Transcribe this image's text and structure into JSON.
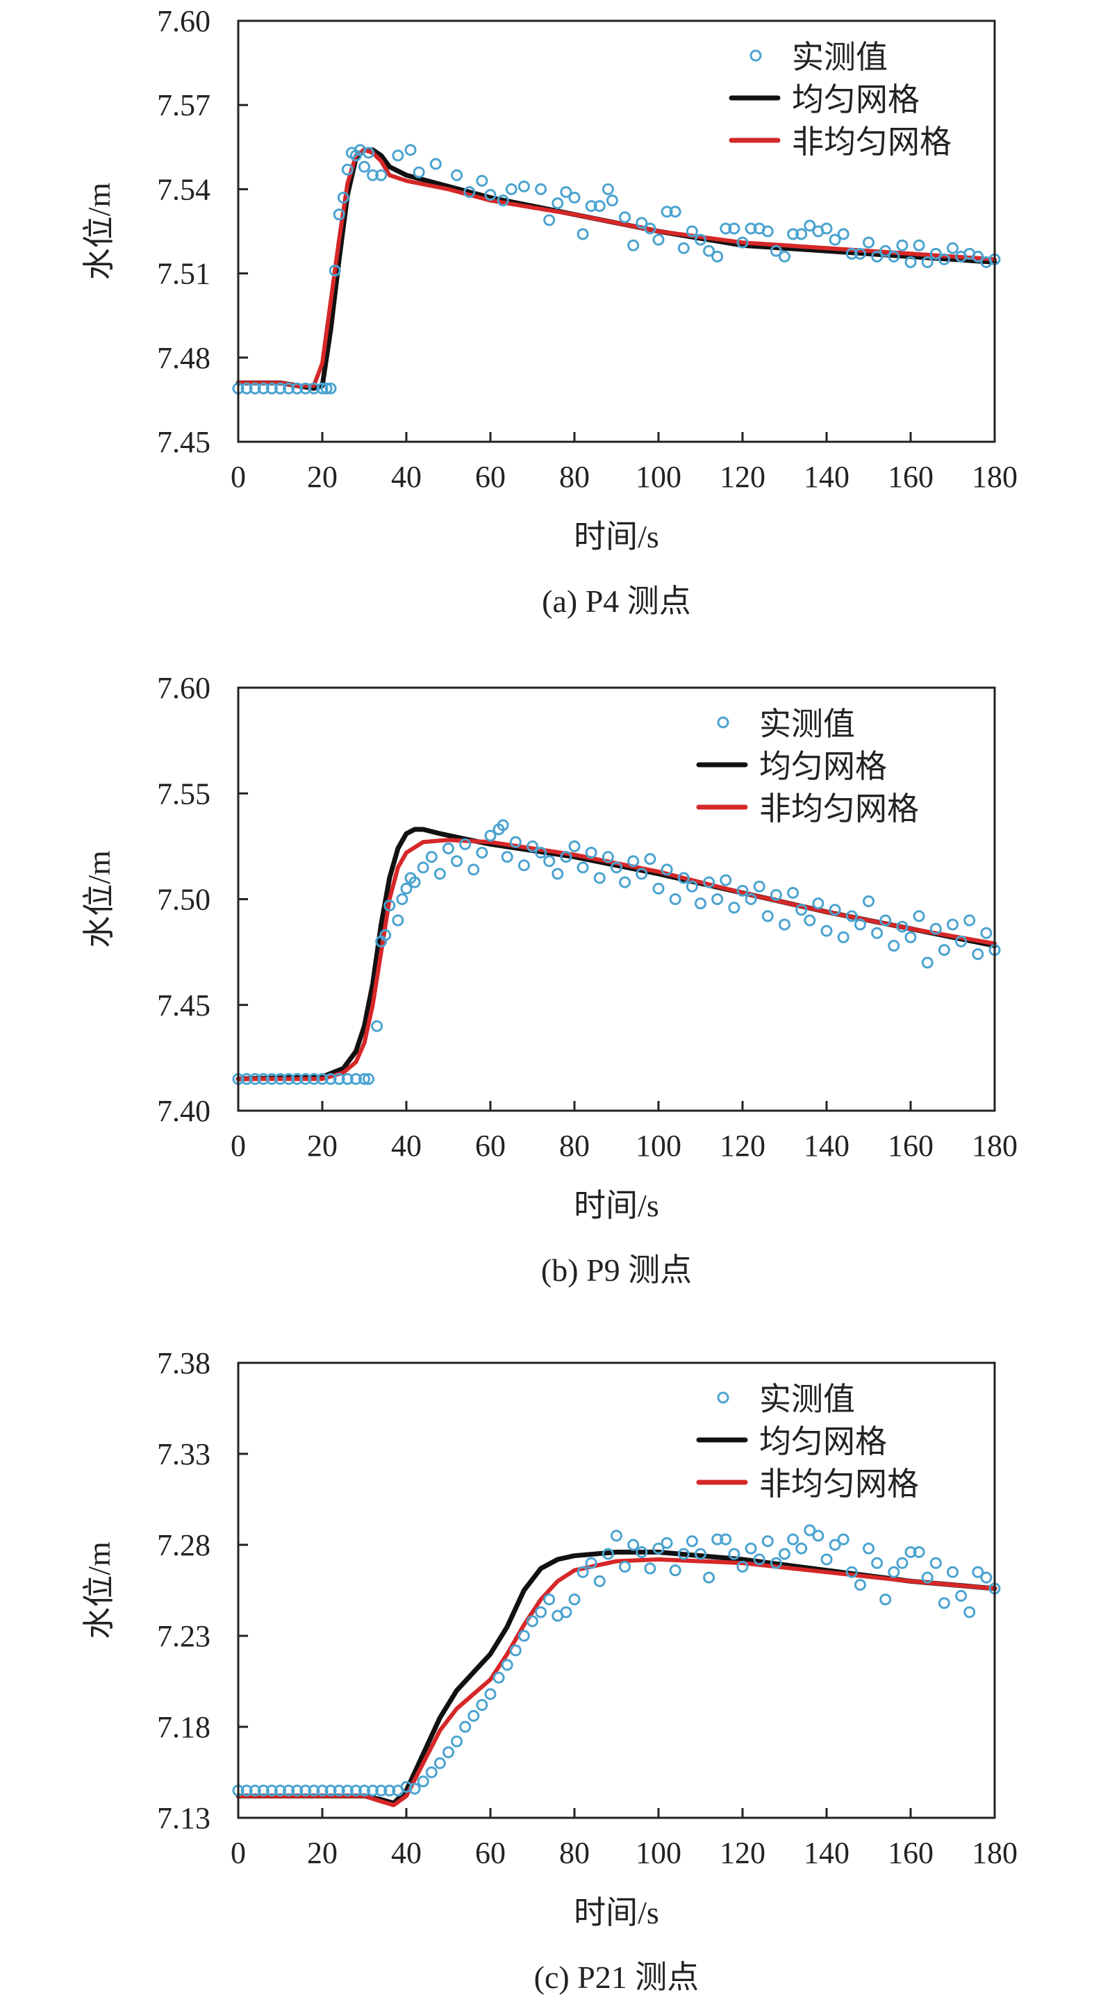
{
  "colors": {
    "measured": "#4aa3d0",
    "uniform": "#111111",
    "nonuniform": "#d62728",
    "axis": "#222222"
  },
  "chart_data": [
    {
      "type": "line",
      "caption": "(a) P4 测点",
      "xlabel": "时间/s",
      "ylabel": "水位/m",
      "xlim": [
        0,
        180
      ],
      "ylim": [
        7.45,
        7.6
      ],
      "xticks": [
        "0",
        "20",
        "40",
        "60",
        "80",
        "100",
        "120",
        "140",
        "160",
        "180"
      ],
      "yticks": [
        "7.45",
        "7.48",
        "7.51",
        "7.54",
        "7.57",
        "7.60"
      ],
      "legend_position": "top-right",
      "grid": false,
      "series": [
        {
          "name": "实测值",
          "kind": "scatter",
          "x": [
            0,
            2,
            4,
            6,
            8,
            10,
            12,
            14,
            16,
            18,
            20,
            21,
            22,
            23,
            24,
            25,
            26,
            27,
            28,
            29,
            30,
            31,
            32,
            34,
            38,
            41,
            43,
            47,
            52,
            55,
            58,
            60,
            63,
            65,
            68,
            72,
            74,
            76,
            78,
            80,
            82,
            84,
            86,
            88,
            89,
            92,
            94,
            96,
            98,
            100,
            102,
            104,
            106,
            108,
            110,
            112,
            114,
            116,
            118,
            120,
            122,
            124,
            126,
            128,
            130,
            132,
            134,
            136,
            138,
            140,
            142,
            144,
            146,
            148,
            150,
            152,
            154,
            156,
            158,
            160,
            162,
            164,
            166,
            168,
            170,
            172,
            174,
            176,
            178,
            180
          ],
          "y": [
            7.469,
            7.469,
            7.469,
            7.469,
            7.469,
            7.469,
            7.469,
            7.469,
            7.469,
            7.469,
            7.469,
            7.469,
            7.469,
            7.511,
            7.531,
            7.537,
            7.547,
            7.553,
            7.552,
            7.554,
            7.548,
            7.553,
            7.545,
            7.545,
            7.552,
            7.554,
            7.546,
            7.549,
            7.545,
            7.539,
            7.543,
            7.538,
            7.536,
            7.54,
            7.541,
            7.54,
            7.529,
            7.535,
            7.539,
            7.537,
            7.524,
            7.534,
            7.534,
            7.54,
            7.536,
            7.53,
            7.52,
            7.528,
            7.526,
            7.522,
            7.532,
            7.532,
            7.519,
            7.525,
            7.522,
            7.518,
            7.516,
            7.526,
            7.526,
            7.521,
            7.526,
            7.526,
            7.525,
            7.518,
            7.516,
            7.524,
            7.524,
            7.527,
            7.525,
            7.526,
            7.522,
            7.524,
            7.517,
            7.517,
            7.521,
            7.516,
            7.518,
            7.516,
            7.52,
            7.514,
            7.52,
            7.514,
            7.517,
            7.515,
            7.519,
            7.516,
            7.517,
            7.516,
            7.514,
            7.515
          ]
        },
        {
          "name": "均匀网格",
          "kind": "line",
          "x": [
            0,
            10,
            14,
            18,
            20,
            22,
            24,
            26,
            28,
            30,
            32,
            34,
            36,
            40,
            50,
            60,
            80,
            100,
            120,
            140,
            160,
            180
          ],
          "y": [
            7.471,
            7.471,
            7.47,
            7.469,
            7.47,
            7.49,
            7.515,
            7.538,
            7.551,
            7.554,
            7.554,
            7.552,
            7.548,
            7.545,
            7.541,
            7.537,
            7.531,
            7.525,
            7.52,
            7.518,
            7.516,
            7.514
          ]
        },
        {
          "name": "非均匀网格",
          "kind": "line",
          "x": [
            0,
            10,
            14,
            18,
            20,
            22,
            24,
            26,
            28,
            30,
            32,
            34,
            36,
            40,
            50,
            60,
            80,
            100,
            120,
            140,
            160,
            180
          ],
          "y": [
            7.471,
            7.471,
            7.47,
            7.47,
            7.478,
            7.5,
            7.522,
            7.542,
            7.552,
            7.554,
            7.553,
            7.55,
            7.545,
            7.543,
            7.54,
            7.536,
            7.531,
            7.525,
            7.521,
            7.519,
            7.517,
            7.515
          ]
        }
      ]
    },
    {
      "type": "line",
      "caption": "(b) P9 测点",
      "xlabel": "时间/s",
      "ylabel": "水位/m",
      "xlim": [
        0,
        180
      ],
      "ylim": [
        7.4,
        7.6
      ],
      "xticks": [
        "0",
        "20",
        "40",
        "60",
        "80",
        "100",
        "120",
        "140",
        "160",
        "180"
      ],
      "yticks": [
        "7.40",
        "7.45",
        "7.50",
        "7.55",
        "7.60"
      ],
      "legend_position": "top-right",
      "grid": false,
      "series": [
        {
          "name": "实测值",
          "kind": "scatter",
          "x": [
            0,
            2,
            4,
            6,
            8,
            10,
            12,
            14,
            16,
            18,
            20,
            22,
            24,
            26,
            28,
            30,
            31,
            33,
            34,
            35,
            36,
            38,
            39,
            40,
            41,
            42,
            44,
            46,
            48,
            50,
            52,
            54,
            56,
            58,
            60,
            62,
            63,
            64,
            66,
            68,
            70,
            72,
            74,
            76,
            78,
            80,
            82,
            84,
            86,
            88,
            90,
            92,
            94,
            96,
            98,
            100,
            102,
            104,
            106,
            108,
            110,
            112,
            114,
            116,
            118,
            120,
            122,
            124,
            126,
            128,
            130,
            132,
            134,
            136,
            138,
            140,
            142,
            144,
            146,
            148,
            150,
            152,
            154,
            156,
            158,
            160,
            162,
            164,
            166,
            168,
            170,
            172,
            174,
            176,
            178,
            180
          ],
          "y": [
            7.415,
            7.415,
            7.415,
            7.415,
            7.415,
            7.415,
            7.415,
            7.415,
            7.415,
            7.415,
            7.415,
            7.415,
            7.415,
            7.415,
            7.415,
            7.415,
            7.415,
            7.44,
            7.48,
            7.483,
            7.497,
            7.49,
            7.5,
            7.505,
            7.51,
            7.508,
            7.515,
            7.52,
            7.512,
            7.524,
            7.518,
            7.526,
            7.514,
            7.522,
            7.53,
            7.533,
            7.535,
            7.52,
            7.527,
            7.516,
            7.525,
            7.522,
            7.518,
            7.512,
            7.52,
            7.525,
            7.515,
            7.522,
            7.51,
            7.52,
            7.515,
            7.508,
            7.518,
            7.512,
            7.519,
            7.505,
            7.514,
            7.5,
            7.51,
            7.506,
            7.498,
            7.508,
            7.5,
            7.509,
            7.496,
            7.504,
            7.5,
            7.506,
            7.492,
            7.502,
            7.488,
            7.503,
            7.495,
            7.49,
            7.498,
            7.485,
            7.495,
            7.482,
            7.492,
            7.488,
            7.499,
            7.484,
            7.49,
            7.478,
            7.487,
            7.482,
            7.492,
            7.47,
            7.486,
            7.476,
            7.488,
            7.48,
            7.49,
            7.474,
            7.484,
            7.476
          ]
        },
        {
          "name": "均匀网格",
          "kind": "line",
          "x": [
            0,
            20,
            25,
            28,
            30,
            32,
            34,
            36,
            38,
            40,
            42,
            44,
            48,
            55,
            60,
            80,
            100,
            120,
            140,
            160,
            180
          ],
          "y": [
            7.415,
            7.416,
            7.42,
            7.428,
            7.44,
            7.46,
            7.488,
            7.51,
            7.524,
            7.531,
            7.533,
            7.533,
            7.531,
            7.528,
            7.526,
            7.52,
            7.512,
            7.503,
            7.494,
            7.486,
            7.478
          ]
        },
        {
          "name": "非均匀网格",
          "kind": "line",
          "x": [
            0,
            20,
            25,
            28,
            30,
            32,
            34,
            36,
            38,
            40,
            44,
            50,
            60,
            80,
            100,
            120,
            140,
            160,
            180
          ],
          "y": [
            7.415,
            7.415,
            7.418,
            7.423,
            7.432,
            7.45,
            7.475,
            7.5,
            7.515,
            7.522,
            7.527,
            7.528,
            7.527,
            7.521,
            7.513,
            7.503,
            7.494,
            7.486,
            7.479
          ]
        }
      ]
    },
    {
      "type": "line",
      "caption": "(c) P21 测点",
      "xlabel": "时间/s",
      "ylabel": "水位/m",
      "xlim": [
        0,
        180
      ],
      "ylim": [
        7.13,
        7.38
      ],
      "xticks": [
        "0",
        "20",
        "40",
        "60",
        "80",
        "100",
        "120",
        "140",
        "160",
        "180"
      ],
      "yticks": [
        "7.13",
        "7.18",
        "7.23",
        "7.28",
        "7.33",
        "7.38"
      ],
      "legend_position": "top-right",
      "grid": false,
      "series": [
        {
          "name": "实测值",
          "kind": "scatter",
          "x": [
            0,
            2,
            4,
            6,
            8,
            10,
            12,
            14,
            16,
            18,
            20,
            22,
            24,
            26,
            28,
            30,
            32,
            34,
            36,
            38,
            40,
            42,
            44,
            46,
            48,
            50,
            52,
            54,
            56,
            58,
            60,
            62,
            64,
            66,
            68,
            70,
            72,
            74,
            76,
            78,
            80,
            82,
            84,
            86,
            88,
            90,
            92,
            94,
            96,
            98,
            100,
            102,
            104,
            106,
            108,
            110,
            112,
            114,
            116,
            118,
            120,
            122,
            124,
            126,
            128,
            130,
            132,
            134,
            136,
            138,
            140,
            142,
            144,
            146,
            148,
            150,
            152,
            154,
            156,
            158,
            160,
            162,
            164,
            166,
            168,
            170,
            172,
            174,
            176,
            178,
            180
          ],
          "y": [
            7.145,
            7.145,
            7.145,
            7.145,
            7.145,
            7.145,
            7.145,
            7.145,
            7.145,
            7.145,
            7.145,
            7.145,
            7.145,
            7.145,
            7.145,
            7.145,
            7.145,
            7.145,
            7.145,
            7.145,
            7.147,
            7.146,
            7.15,
            7.155,
            7.16,
            7.166,
            7.172,
            7.18,
            7.186,
            7.192,
            7.198,
            7.207,
            7.214,
            7.222,
            7.23,
            7.238,
            7.243,
            7.25,
            7.241,
            7.243,
            7.25,
            7.265,
            7.27,
            7.26,
            7.275,
            7.285,
            7.268,
            7.28,
            7.276,
            7.267,
            7.278,
            7.281,
            7.266,
            7.275,
            7.282,
            7.275,
            7.262,
            7.283,
            7.283,
            7.275,
            7.268,
            7.278,
            7.272,
            7.282,
            7.27,
            7.275,
            7.283,
            7.278,
            7.288,
            7.285,
            7.272,
            7.28,
            7.283,
            7.265,
            7.258,
            7.278,
            7.27,
            7.25,
            7.265,
            7.27,
            7.276,
            7.276,
            7.262,
            7.27,
            7.248,
            7.265,
            7.252,
            7.243,
            7.265,
            7.262,
            7.256
          ]
        },
        {
          "name": "均匀网格",
          "kind": "line",
          "x": [
            0,
            30,
            34,
            37,
            40,
            44,
            48,
            52,
            56,
            60,
            64,
            68,
            72,
            76,
            80,
            90,
            100,
            120,
            140,
            160,
            180
          ],
          "y": [
            7.142,
            7.142,
            7.14,
            7.138,
            7.145,
            7.165,
            7.185,
            7.2,
            7.21,
            7.22,
            7.235,
            7.255,
            7.267,
            7.272,
            7.274,
            7.276,
            7.276,
            7.272,
            7.266,
            7.26,
            7.256
          ]
        },
        {
          "name": "非均匀网格",
          "kind": "line",
          "x": [
            0,
            30,
            34,
            37,
            40,
            44,
            48,
            52,
            56,
            60,
            64,
            68,
            72,
            76,
            80,
            90,
            100,
            120,
            140,
            160,
            180
          ],
          "y": [
            7.142,
            7.142,
            7.139,
            7.137,
            7.142,
            7.16,
            7.178,
            7.19,
            7.198,
            7.206,
            7.22,
            7.236,
            7.25,
            7.26,
            7.266,
            7.271,
            7.272,
            7.27,
            7.265,
            7.26,
            7.256
          ]
        }
      ]
    }
  ]
}
